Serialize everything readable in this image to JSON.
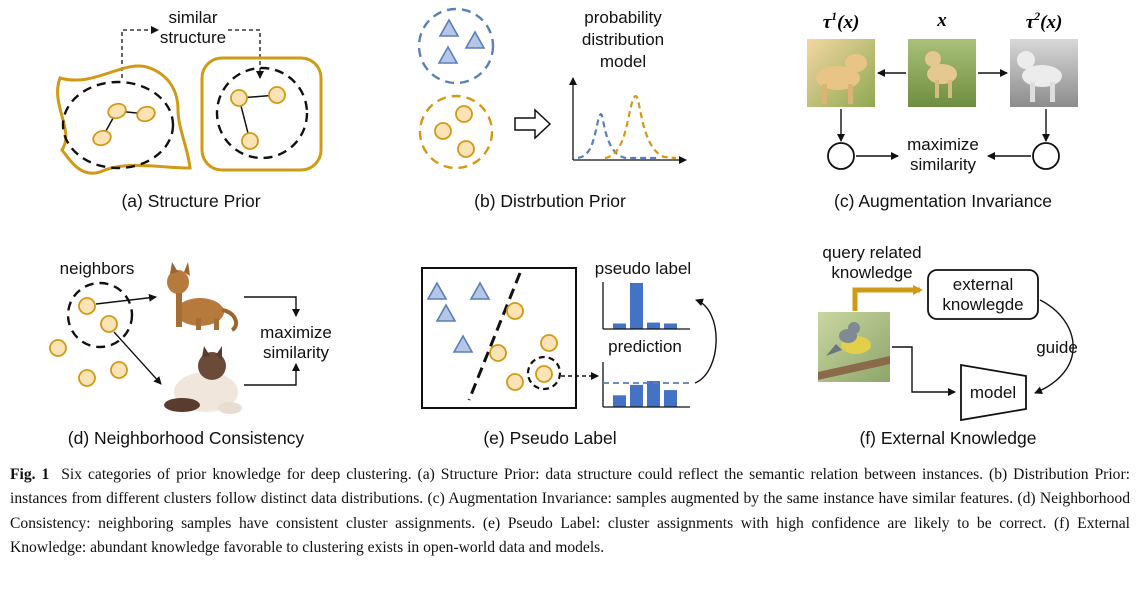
{
  "colors": {
    "gold": "#d19a16",
    "node_fill": "#fbe3b5",
    "blue_edge": "#5b7fb6",
    "blue_fill": "#b5c7e8",
    "bar_blue": "#4472c4",
    "text": "#111111"
  },
  "panel_a": {
    "label": "similar",
    "label2": "structure",
    "caption": "(a) Structure Prior"
  },
  "panel_b": {
    "label1": "probability",
    "label2": "distribution",
    "label3": "model",
    "caption": "(b) Distrbution Prior"
  },
  "panel_c": {
    "tau1": "τ¹(x)",
    "x": "x",
    "tau2": "τ²(x)",
    "label1": "maximize",
    "label2": "similarity",
    "caption": "(c) Augmentation Invariance",
    "images": [
      "dog-image-warm",
      "dog-image-original",
      "dog-image-grayscale"
    ]
  },
  "panel_d": {
    "neighbors": "neighbors",
    "label1": "maximize",
    "label2": "similarity",
    "caption": "(d) Neighborhood Consistency",
    "images": [
      "cat-image-abyssinian",
      "cat-image-persian"
    ]
  },
  "panel_e": {
    "pseudo_label": "pseudo label",
    "prediction": "prediction",
    "caption": "(e) Pseudo Label",
    "pseudo_bars": [
      0.12,
      1.0,
      0.14,
      0.12
    ],
    "prediction_bars": [
      0.45,
      0.85,
      1.0,
      0.65
    ]
  },
  "panel_f": {
    "query1": "query related",
    "query2": "knowledge",
    "external1": "external",
    "external2": "knowlegde",
    "guide": "guide",
    "model": "model",
    "caption": "(f) External Knowledge",
    "image": "bird-image"
  },
  "caption": {
    "figno": "Fig. 1",
    "text": "Six categories of prior knowledge for deep clustering. (a) Structure Prior: data structure could reflect the semantic relation between instances. (b) Distribution Prior: instances from different clusters follow distinct data distributions. (c) Augmentation Invariance: samples augmented by the same instance have similar features. (d) Neighborhood Consistency: neighboring samples have consistent cluster assignments. (e) Pseudo Label: cluster assignments with high confidence are likely to be correct. (f) External Knowledge: abundant knowledge favorable to clustering exists in open-world data and models."
  }
}
